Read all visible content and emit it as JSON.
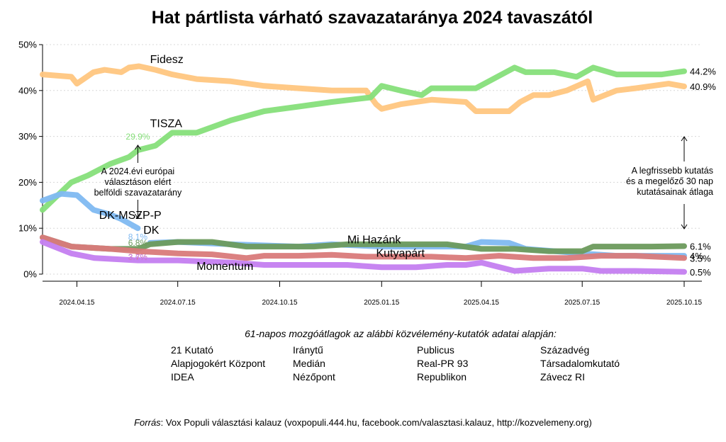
{
  "chart_data": {
    "type": "line",
    "title": "Hat pártlista várható szavazataránya 2024 tavaszától",
    "y_unit": "%",
    "ylim": [
      0,
      50
    ],
    "yticks": [
      0,
      10,
      20,
      30,
      40,
      50
    ],
    "ytick_labels": [
      "0%",
      "10%",
      "20%",
      "30%",
      "40%",
      "50%"
    ],
    "xlim": [
      "2024-03-15",
      "2025-10-31"
    ],
    "xticks": [
      "2024-04-15",
      "2024-07-15",
      "2024-10-15",
      "2025-01-15",
      "2025-04-15",
      "2025-07-15",
      "2025-10-15"
    ],
    "xtick_labels": [
      "2024.04.15",
      "2024.07.15",
      "2024.10.15",
      "2025.01.15",
      "2025.04.15",
      "2025.07.15",
      "2025.10.15"
    ],
    "grid": "horizontal dotted",
    "series": [
      {
        "name": "Fidesz",
        "color": "#FFC67F",
        "label_date": "2024-06-20",
        "label_y": 46,
        "end_label": "40.9%",
        "end_y": 40.9,
        "points": [
          [
            "2024-03-15",
            43.5
          ],
          [
            "2024-04-10",
            43
          ],
          [
            "2024-04-15",
            41.5
          ],
          [
            "2024-04-30",
            44
          ],
          [
            "2024-05-10",
            44.5
          ],
          [
            "2024-05-25",
            44
          ],
          [
            "2024-06-01",
            45
          ],
          [
            "2024-06-10",
            45.3
          ],
          [
            "2024-06-25",
            44.5
          ],
          [
            "2024-07-10",
            43.5
          ],
          [
            "2024-08-01",
            42.5
          ],
          [
            "2024-09-01",
            42
          ],
          [
            "2024-10-01",
            41
          ],
          [
            "2024-11-01",
            40.5
          ],
          [
            "2024-12-01",
            40
          ],
          [
            "2025-01-01",
            40
          ],
          [
            "2025-01-10",
            37
          ],
          [
            "2025-01-15",
            36
          ],
          [
            "2025-02-01",
            37
          ],
          [
            "2025-03-01",
            38
          ],
          [
            "2025-04-01",
            37.5
          ],
          [
            "2025-04-10",
            35.5
          ],
          [
            "2025-05-10",
            35.5
          ],
          [
            "2025-05-20",
            37.5
          ],
          [
            "2025-06-01",
            39
          ],
          [
            "2025-06-15",
            39
          ],
          [
            "2025-07-01",
            40
          ],
          [
            "2025-07-20",
            42
          ],
          [
            "2025-07-25",
            38
          ],
          [
            "2025-08-15",
            40
          ],
          [
            "2025-09-01",
            40.5
          ],
          [
            "2025-10-01",
            41.5
          ],
          [
            "2025-10-15",
            40.9
          ]
        ]
      },
      {
        "name": "TISZA",
        "color": "#86DF7A",
        "label_date": "2024-06-20",
        "label_y": 32,
        "start_value": "29.9%",
        "start_date": "2024-06-09",
        "start_y": 29.9,
        "end_label": "44.2%",
        "end_y": 44.2,
        "points": [
          [
            "2024-03-15",
            14
          ],
          [
            "2024-04-10",
            20
          ],
          [
            "2024-04-25",
            21.5
          ],
          [
            "2024-05-15",
            24
          ],
          [
            "2024-06-01",
            25.5
          ],
          [
            "2024-06-09",
            27
          ],
          [
            "2024-06-25",
            28
          ],
          [
            "2024-07-10",
            30.8
          ],
          [
            "2024-08-01",
            30.8
          ],
          [
            "2024-09-01",
            33.5
          ],
          [
            "2024-10-01",
            35.5
          ],
          [
            "2024-11-01",
            36.5
          ],
          [
            "2024-12-01",
            37.5
          ],
          [
            "2025-01-05",
            38.5
          ],
          [
            "2025-01-15",
            41
          ],
          [
            "2025-02-01",
            40
          ],
          [
            "2025-02-20",
            39
          ],
          [
            "2025-03-01",
            40.5
          ],
          [
            "2025-03-25",
            40.5
          ],
          [
            "2025-04-10",
            40.5
          ],
          [
            "2025-05-15",
            45
          ],
          [
            "2025-05-25",
            44
          ],
          [
            "2025-06-20",
            44
          ],
          [
            "2025-07-10",
            43
          ],
          [
            "2025-07-25",
            45
          ],
          [
            "2025-08-15",
            43.5
          ],
          [
            "2025-09-01",
            43.5
          ],
          [
            "2025-09-25",
            43.5
          ],
          [
            "2025-10-15",
            44.2
          ]
        ]
      },
      {
        "name": "DK-MSZP-P",
        "color": "#80B9F1",
        "label_date": "2024-05-05",
        "label_y": 12,
        "start_value": "8.1%",
        "start_date": "2024-06-09",
        "start_y": 8.1,
        "points": [
          [
            "2024-03-15",
            16
          ],
          [
            "2024-04-01",
            17.5
          ],
          [
            "2024-04-15",
            17.2
          ],
          [
            "2024-04-30",
            14
          ],
          [
            "2024-05-15",
            13
          ],
          [
            "2024-05-25",
            12
          ],
          [
            "2024-06-09",
            10
          ]
        ]
      },
      {
        "name": "DK",
        "color": "#80B9F1",
        "label_date": "2024-06-14",
        "label_y": 8.8,
        "end_label": "4%",
        "end_y": 4,
        "points": [
          [
            "2024-06-20",
            6.8
          ],
          [
            "2024-07-15",
            7
          ],
          [
            "2024-09-01",
            6.5
          ],
          [
            "2024-11-01",
            6
          ],
          [
            "2024-12-01",
            6.5
          ],
          [
            "2025-01-15",
            6
          ],
          [
            "2025-02-20",
            6
          ],
          [
            "2025-03-01",
            6
          ],
          [
            "2025-04-01",
            6
          ],
          [
            "2025-04-15",
            7
          ],
          [
            "2025-05-10",
            6.8
          ],
          [
            "2025-05-25",
            5.5
          ],
          [
            "2025-06-20",
            5
          ],
          [
            "2025-07-15",
            4.5
          ],
          [
            "2025-08-15",
            4
          ],
          [
            "2025-09-15",
            4
          ],
          [
            "2025-10-15",
            4
          ]
        ]
      },
      {
        "name": "Mi Hazánk",
        "color": "#6B9A5C",
        "label_date": "2024-12-15",
        "label_y": 6.7,
        "start_value": "6.8%",
        "start_date": "2024-06-09",
        "start_y": 6.8,
        "end_label": "6.1%",
        "end_y": 6.1,
        "points": [
          [
            "2024-03-15",
            8
          ],
          [
            "2024-04-10",
            6
          ],
          [
            "2024-05-15",
            5.5
          ],
          [
            "2024-06-09",
            5.5
          ],
          [
            "2024-06-20",
            6.5
          ],
          [
            "2024-07-15",
            7
          ],
          [
            "2024-08-15",
            7
          ],
          [
            "2024-09-15",
            6
          ],
          [
            "2024-10-15",
            6
          ],
          [
            "2024-11-15",
            6
          ],
          [
            "2024-12-15",
            6.5
          ],
          [
            "2025-01-15",
            6.5
          ],
          [
            "2025-02-15",
            6.5
          ],
          [
            "2025-03-15",
            6.5
          ],
          [
            "2025-04-15",
            5.5
          ],
          [
            "2025-05-15",
            5.5
          ],
          [
            "2025-06-15",
            5
          ],
          [
            "2025-07-15",
            5
          ],
          [
            "2025-07-25",
            6
          ],
          [
            "2025-09-15",
            6
          ],
          [
            "2025-10-15",
            6.1
          ]
        ]
      },
      {
        "name": "Kutyapárt",
        "color": "#D97A7A",
        "label_date": "2025-01-10",
        "label_y": 3.8,
        "start_value": "3.7%",
        "start_date": "2024-06-09",
        "start_y": 3.7,
        "end_label": "3.5%",
        "end_y": 3.5,
        "points": [
          [
            "2024-03-15",
            8
          ],
          [
            "2024-04-10",
            6
          ],
          [
            "2024-05-15",
            5.5
          ],
          [
            "2024-06-09",
            5
          ],
          [
            "2024-07-15",
            4.5
          ],
          [
            "2024-08-15",
            4.3
          ],
          [
            "2024-09-15",
            3.5
          ],
          [
            "2024-10-01",
            4
          ],
          [
            "2024-11-01",
            4
          ],
          [
            "2024-12-01",
            4.2
          ],
          [
            "2025-01-01",
            3.8
          ],
          [
            "2025-02-01",
            3.8
          ],
          [
            "2025-03-01",
            3.8
          ],
          [
            "2025-04-01",
            3.5
          ],
          [
            "2025-05-01",
            4
          ],
          [
            "2025-06-01",
            3.5
          ],
          [
            "2025-07-01",
            3.5
          ],
          [
            "2025-08-01",
            4
          ],
          [
            "2025-09-01",
            4
          ],
          [
            "2025-10-15",
            3.5
          ]
        ]
      },
      {
        "name": "Momentum",
        "color": "#C47EF0",
        "label_date": "2024-08-01",
        "label_y": 0.9,
        "start_value": "3.6%",
        "start_date": "2024-06-09",
        "start_y": 3.6,
        "end_label": "0.5%",
        "end_y": 0.5,
        "points": [
          [
            "2024-03-15",
            7
          ],
          [
            "2024-04-10",
            4.5
          ],
          [
            "2024-05-01",
            3.5
          ],
          [
            "2024-06-09",
            3
          ],
          [
            "2024-07-15",
            3
          ],
          [
            "2024-09-01",
            2.5
          ],
          [
            "2024-10-01",
            2
          ],
          [
            "2024-11-01",
            2
          ],
          [
            "2024-12-15",
            2
          ],
          [
            "2025-01-15",
            1.5
          ],
          [
            "2025-02-15",
            1.5
          ],
          [
            "2025-03-15",
            2
          ],
          [
            "2025-04-01",
            2
          ],
          [
            "2025-04-15",
            2.5
          ],
          [
            "2025-05-15",
            0.7
          ],
          [
            "2025-06-15",
            1.2
          ],
          [
            "2025-07-15",
            1.2
          ],
          [
            "2025-08-01",
            0.7
          ],
          [
            "2025-09-01",
            0.7
          ],
          [
            "2025-10-15",
            0.5
          ]
        ]
      }
    ],
    "annotations": {
      "election_note": [
        "A 2024.évi európai",
        "választáson elért",
        "belföldi szavazatarány"
      ],
      "election_date": "2024-06-09",
      "latest_note": [
        "A legfrissebb kutatás",
        "és a megelőző 30 nap",
        "kutatásainak átlaga"
      ],
      "latest_date": "2025-10-15"
    }
  },
  "methodology": {
    "text": "61-napos mozgóátlagok az alábbi közvélemény-kutatók adatai alapján:",
    "pollsters": [
      [
        "21 Kutató",
        "Alapjogokért Központ",
        "IDEA"
      ],
      [
        "Iránytű",
        "Medián",
        "Nézőpont"
      ],
      [
        "Publicus",
        "Real-PR 93",
        "Republikon"
      ],
      [
        "Századvég",
        "Társadalomkutató",
        "Závecz RI"
      ]
    ]
  },
  "source": {
    "prefix": "Forrás",
    "text": ": Vox Populi választási kalauz (voxpopuli.444.hu, facebook.com/valasztasi.kalauz, http://kozvelemeny.org)"
  }
}
